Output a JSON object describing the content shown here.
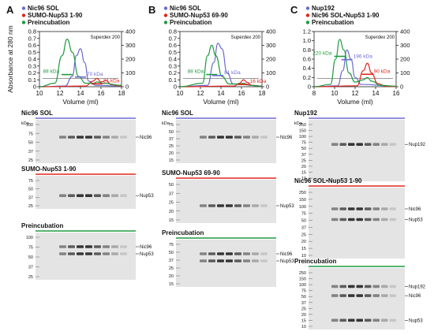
{
  "colors": {
    "blue": "#6b6bd1",
    "red": "#e0261f",
    "green": "#1f9a3f",
    "gray": "#9a9a9a"
  },
  "common": {
    "ylabel_left": "Absorbance at 280 nm",
    "xlabel": "Volume (ml)",
    "column_label": "Superdex 200",
    "kda_label": "kDa"
  },
  "panels": [
    {
      "letter": "A",
      "legend": [
        {
          "label": "Nic96 SOL",
          "color": "blue"
        },
        {
          "label": "SUMO-Nup53 1-90",
          "color": "red"
        },
        {
          "label": "Preincubation",
          "color": "green"
        }
      ]
    },
    {
      "letter": "B",
      "legend": [
        {
          "label": "Nic96 SOL",
          "color": "blue"
        },
        {
          "label": "SUMO-Nup53 69-90",
          "color": "red"
        },
        {
          "label": "Preincubation",
          "color": "green"
        }
      ]
    },
    {
      "letter": "C",
      "legend": [
        {
          "label": "Nup192",
          "color": "blue"
        },
        {
          "label": "Nic96 SOL•Nup53 1-90",
          "color": "red"
        },
        {
          "label": "Preincubation",
          "color": "green"
        }
      ]
    }
  ],
  "chart_data": [
    {
      "type": "line",
      "panel": "A",
      "xlim": [
        10,
        18
      ],
      "xticks": [
        10,
        12,
        14,
        16,
        18
      ],
      "ylim_left": [
        0,
        0.8
      ],
      "yticks_left": [
        "0",
        "0.1",
        "0.2",
        "0.3",
        "0.4",
        "0.5",
        "0.6",
        "0.7",
        "0.8"
      ],
      "ylim_right": [
        0,
        400
      ],
      "yticks_right": [
        "0",
        "100",
        "200",
        "300",
        "400"
      ],
      "series": [
        {
          "name": "Nic96 SOL",
          "color": "blue",
          "points": [
            [
              10,
              0
            ],
            [
              12.5,
              0.01
            ],
            [
              13.2,
              0.15
            ],
            [
              13.6,
              0.45
            ],
            [
              14,
              0.55
            ],
            [
              14.4,
              0.35
            ],
            [
              14.8,
              0.08
            ],
            [
              15.5,
              0.02
            ],
            [
              18,
              0.01
            ]
          ]
        },
        {
          "name": "SUMO-Nup53 1-90",
          "color": "red",
          "points": [
            [
              10,
              0
            ],
            [
              14.5,
              0.01
            ],
            [
              15.2,
              0.08
            ],
            [
              15.6,
              0.12
            ],
            [
              16,
              0.07
            ],
            [
              16.5,
              0.09
            ],
            [
              17,
              0.03
            ],
            [
              18,
              0.01
            ]
          ]
        },
        {
          "name": "Preincubation",
          "color": "green",
          "points": [
            [
              10,
              0
            ],
            [
              11.5,
              0.05
            ],
            [
              12.2,
              0.45
            ],
            [
              12.7,
              0.69
            ],
            [
              13.2,
              0.5
            ],
            [
              13.8,
              0.15
            ],
            [
              14.5,
              0.05
            ],
            [
              15.3,
              0.05
            ],
            [
              15.6,
              0.07
            ],
            [
              16.2,
              0.05
            ],
            [
              18,
              0.02
            ]
          ]
        }
      ],
      "mw_lines": [
        {
          "label": "88 kDa",
          "color": "green",
          "y": 88
        },
        {
          "label": "70 kDa",
          "color": "blue",
          "y": 70
        },
        {
          "label": "21 kDa",
          "color": "red",
          "y": 21
        }
      ],
      "gray_line_y": 60
    },
    {
      "type": "line",
      "panel": "B",
      "xlim": [
        10,
        18
      ],
      "xticks": [
        10,
        12,
        14,
        16,
        18
      ],
      "ylim_left": [
        0,
        0.8
      ],
      "yticks_left": [
        "0",
        "0.1",
        "0.2",
        "0.3",
        "0.4",
        "0.5",
        "0.6",
        "0.7",
        "0.8"
      ],
      "ylim_right": [
        0,
        400
      ],
      "yticks_right": [
        "0",
        "100",
        "200",
        "300",
        "400"
      ],
      "series": [
        {
          "name": "Nic96 SOL",
          "color": "blue",
          "points": [
            [
              10,
              0
            ],
            [
              12.7,
              0.02
            ],
            [
              13.3,
              0.35
            ],
            [
              13.7,
              0.63
            ],
            [
              14.1,
              0.55
            ],
            [
              14.6,
              0.2
            ],
            [
              15.2,
              0.04
            ],
            [
              18,
              0.01
            ]
          ]
        },
        {
          "name": "SUMO-Nup53 69-90",
          "color": "red",
          "points": [
            [
              10,
              0
            ],
            [
              15.3,
              0.01
            ],
            [
              15.8,
              0.05
            ],
            [
              16.2,
              0.1
            ],
            [
              16.6,
              0.06
            ],
            [
              17,
              0.02
            ],
            [
              18,
              0.01
            ]
          ]
        },
        {
          "name": "Preincubation",
          "color": "green",
          "points": [
            [
              10,
              0
            ],
            [
              12.2,
              0.05
            ],
            [
              12.7,
              0.45
            ],
            [
              13.1,
              0.6
            ],
            [
              13.5,
              0.45
            ],
            [
              14.1,
              0.15
            ],
            [
              14.8,
              0.04
            ],
            [
              15.8,
              0.04
            ],
            [
              16.2,
              0.05
            ],
            [
              16.8,
              0.02
            ],
            [
              18,
              0.01
            ]
          ]
        }
      ],
      "mw_lines": [
        {
          "label": "88 kDa",
          "color": "green",
          "y": 88
        },
        {
          "label": "81 kDa",
          "color": "blue",
          "y": 81
        },
        {
          "label": "16 kDa",
          "color": "red",
          "y": 16
        }
      ],
      "gray_line_y": 60
    },
    {
      "type": "line",
      "panel": "C",
      "xlim": [
        8,
        16
      ],
      "xticks": [
        8,
        10,
        12,
        14,
        16
      ],
      "ylim_left": [
        0,
        1.2
      ],
      "yticks_left": [
        "0",
        "0.2",
        "0.4",
        "0.6",
        "0.8",
        "1.0",
        "1.2"
      ],
      "ylim_right": [
        0,
        400
      ],
      "yticks_right": [
        "0",
        "100",
        "200",
        "300",
        "400"
      ],
      "series": [
        {
          "name": "Nup192",
          "color": "blue",
          "points": [
            [
              8,
              0
            ],
            [
              10.3,
              0.02
            ],
            [
              10.8,
              0.35
            ],
            [
              11.2,
              0.8
            ],
            [
              11.6,
              0.6
            ],
            [
              12,
              0.2
            ],
            [
              12.6,
              0.05
            ],
            [
              16,
              0.01
            ]
          ]
        },
        {
          "name": "Nic96 SOL•Nup53 1-90",
          "color": "red",
          "points": [
            [
              8,
              0
            ],
            [
              12.2,
              0.02
            ],
            [
              12.8,
              0.35
            ],
            [
              13.2,
              0.51
            ],
            [
              13.6,
              0.3
            ],
            [
              14.2,
              0.07
            ],
            [
              15,
              0.01
            ],
            [
              16,
              0
            ]
          ]
        },
        {
          "name": "Preincubation",
          "color": "green",
          "points": [
            [
              8,
              0
            ],
            [
              9.6,
              0.05
            ],
            [
              10.1,
              0.6
            ],
            [
              10.5,
              1.03
            ],
            [
              10.9,
              0.8
            ],
            [
              11.4,
              0.3
            ],
            [
              12,
              0.1
            ],
            [
              12.8,
              0.15
            ],
            [
              13.2,
              0.2
            ],
            [
              13.6,
              0.12
            ],
            [
              14.5,
              0.03
            ],
            [
              16,
              0.01
            ]
          ]
        }
      ],
      "mw_lines": [
        {
          "label": "220 kDa",
          "color": "green",
          "y": 220
        },
        {
          "label": "196 kDa",
          "color": "blue",
          "y": 196
        },
        {
          "label": "90 kDa",
          "color": "red",
          "y": 90
        }
      ],
      "gray_line_y": 60
    }
  ],
  "gels": {
    "A": [
      {
        "title": "Nic96 SOL",
        "bar_color": "blue",
        "markers": [
          "100",
          "75",
          "50",
          "37",
          "25"
        ],
        "band_labels": [
          "Nic96"
        ]
      },
      {
        "title": "SUMO-Nup53 1-90",
        "bar_color": "red",
        "markers": [
          "75",
          "50",
          "37",
          "25"
        ],
        "band_labels": [
          "Nup53"
        ]
      },
      {
        "title": "Preincubation",
        "bar_color": "green",
        "markers": [
          "100",
          "75",
          "50",
          "37",
          "25"
        ],
        "band_labels": [
          "Nic96",
          "Nup53"
        ]
      }
    ],
    "B": [
      {
        "title": "Nic96 SOL",
        "bar_color": "blue",
        "markers": [
          "75",
          "50",
          "37",
          "25",
          "20",
          "15"
        ],
        "band_labels": [
          "Nic96"
        ]
      },
      {
        "title": "SUMO-Nup53 69-90",
        "bar_color": "red",
        "markers": [
          "50",
          "37",
          "25",
          "20",
          "15"
        ],
        "band_labels": [
          "Nup53"
        ]
      },
      {
        "title": "Preincubation",
        "bar_color": "green",
        "markers": [
          "75",
          "50",
          "37",
          "25",
          "20",
          "15"
        ],
        "band_labels": [
          "Nic96",
          "Nup53"
        ]
      }
    ],
    "C": [
      {
        "title": "Nup192",
        "bar_color": "blue",
        "markers": [
          "250",
          "150",
          "100",
          "75",
          "50",
          "37",
          "25",
          "20",
          "15",
          "10"
        ],
        "band_labels": [
          "Nup192"
        ]
      },
      {
        "title": "Nic96 SOL•Nup53 1-90",
        "bar_color": "red",
        "markers": [
          "250",
          "150",
          "100",
          "75",
          "50",
          "37",
          "25",
          "20",
          "15",
          "10"
        ],
        "band_labels": [
          "Nic96",
          "Nup53"
        ]
      },
      {
        "title": "Preincubation",
        "bar_color": "green",
        "markers": [
          "250",
          "150",
          "100",
          "75",
          "50",
          "37",
          "25",
          "20",
          "15",
          "10"
        ],
        "band_labels": [
          "Nup192",
          "Nic96",
          "Nup53"
        ]
      }
    ]
  }
}
